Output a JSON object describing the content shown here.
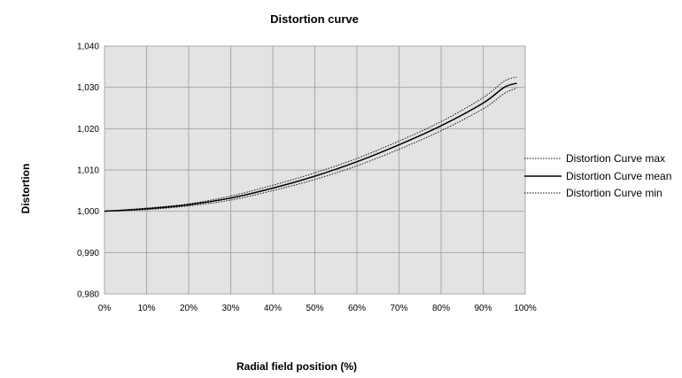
{
  "chart_data": {
    "type": "line",
    "title": "Distortion curve",
    "xlabel": "Radial field position (%)",
    "ylabel": "Distortion",
    "xlim": [
      0,
      100
    ],
    "ylim": [
      0.98,
      1.04
    ],
    "x_ticks": [
      0,
      10,
      20,
      30,
      40,
      50,
      60,
      70,
      80,
      90,
      100
    ],
    "x_tick_labels": [
      "0%",
      "10%",
      "20%",
      "30%",
      "40%",
      "50%",
      "60%",
      "70%",
      "80%",
      "90%",
      "100%"
    ],
    "y_ticks": [
      0.98,
      0.99,
      1.0,
      1.01,
      1.02,
      1.03,
      1.04
    ],
    "y_tick_labels": [
      "0,980",
      "0,990",
      "1,000",
      "1,010",
      "1,020",
      "1,030",
      "1,040"
    ],
    "grid": true,
    "legend_position": "right",
    "x": [
      0,
      10,
      20,
      30,
      40,
      50,
      60,
      70,
      80,
      90,
      95,
      98
    ],
    "series": [
      {
        "name": "Distortion Curve max",
        "style": "dotted",
        "values": [
          1.0,
          1.0008,
          1.0018,
          1.0037,
          1.0063,
          1.0093,
          1.0128,
          1.017,
          1.0217,
          1.0275,
          1.0315,
          1.0325
        ]
      },
      {
        "name": "Distortion Curve mean",
        "style": "solid",
        "values": [
          1.0,
          1.0006,
          1.0016,
          1.0032,
          1.0056,
          1.0085,
          1.012,
          1.0161,
          1.0207,
          1.0262,
          1.03,
          1.031
        ]
      },
      {
        "name": "Distortion Curve min",
        "style": "dotted",
        "values": [
          1.0,
          1.0004,
          1.0013,
          1.0027,
          1.005,
          1.0077,
          1.011,
          1.015,
          1.0195,
          1.0248,
          1.0285,
          1.0298
        ]
      }
    ]
  }
}
